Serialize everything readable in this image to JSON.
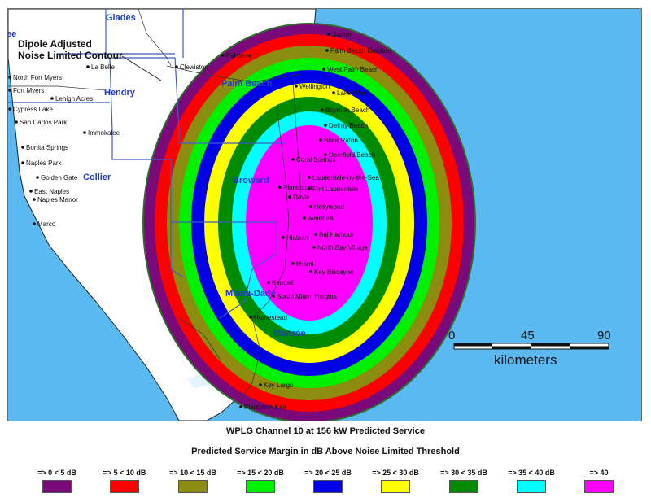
{
  "map": {
    "title_line1": "Dipole Adjusted",
    "title_line2": "Noise Limited Contour",
    "colors": {
      "ocean": "#5ab9f0",
      "land": "#ffffff",
      "boundary": "#3f5bc6",
      "coast": "#222222",
      "outline": "#2e6b2e"
    },
    "counties": [
      {
        "key": "glades",
        "label": "Glades"
      },
      {
        "key": "hendry",
        "label": "Hendry"
      },
      {
        "key": "collier",
        "label": "Collier"
      },
      {
        "key": "broward",
        "label": "Broward"
      },
      {
        "key": "palm-beach",
        "label": "Palm Beach"
      },
      {
        "key": "miami-dade",
        "label": "Miami-Dade"
      },
      {
        "key": "monroe",
        "label": "Monroe"
      },
      {
        "key": "lee",
        "label": "ee"
      }
    ],
    "places": [
      "Jupiter",
      "Palm Beach Gardens",
      "Pahokee",
      "Clewiston",
      "La Belle",
      "North Fort Myers",
      "Fort Myers",
      "Lehigh Acres",
      "Cypress Lake",
      "West Palm Beach",
      "Wellington",
      "Lake Worth",
      "Boynton Beach",
      "San Carlos Park",
      "Immokalee",
      "Delray Beach",
      "Boca Raton",
      "Deerfield Beach",
      "Bonita Springs",
      "Coral Springs",
      "Naples Park",
      "Lauderdale-by-the-Sea",
      "Golden Gate",
      "Fort Lauderdale",
      "Plantation",
      "East Naples",
      "Naples Manor",
      "Davie",
      "Hollywood",
      "Aventura",
      "Marco",
      "Bal Harbour",
      "Hialeah",
      "North Bay Village",
      "Miami",
      "Key Biscayne",
      "Kendall",
      "South Miami Heights",
      "Homestead",
      "Key Largo",
      "Plantation Key"
    ],
    "scale_bar": {
      "ticks": [
        "0",
        "45",
        "90"
      ],
      "unit": "kilometers"
    }
  },
  "caption": {
    "title": "WPLG Channel 10 at 156 kW Predicted Service",
    "subtitle": "Predicted Service Margin in dB Above Noise Limited Threshold"
  },
  "legend": [
    {
      "label": "=> 0  < 5 dB",
      "min_db": 0,
      "color": "#7a0a7a"
    },
    {
      "label": "=> 5  < 10 dB",
      "min_db": 5,
      "color": "#ff0000"
    },
    {
      "label": "=> 10  < 15 dB",
      "min_db": 10,
      "color": "#8c8c10"
    },
    {
      "label": "=> 15  < 20 dB",
      "min_db": 15,
      "color": "#00f000"
    },
    {
      "label": "=> 20  < 25 dB",
      "min_db": 20,
      "color": "#0000e6"
    },
    {
      "label": "=> 25  < 30 dB",
      "min_db": 25,
      "color": "#ffff00"
    },
    {
      "label": "=> 30  < 35 dB",
      "min_db": 30,
      "color": "#008a00"
    },
    {
      "label": "=> 35  < 40 dB",
      "min_db": 35,
      "color": "#00ffff"
    },
    {
      "label": "=> 40",
      "min_db": 40,
      "color": "#ff00ff"
    }
  ]
}
